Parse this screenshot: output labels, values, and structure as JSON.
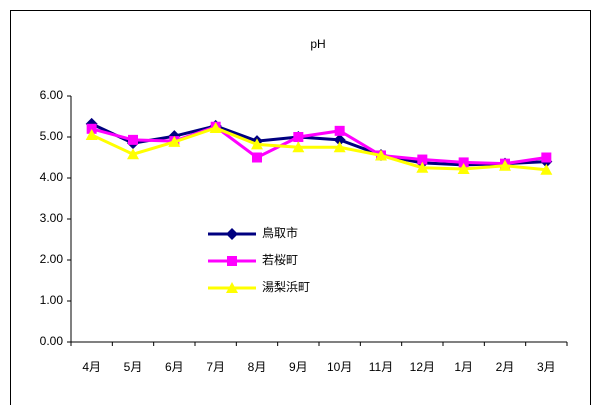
{
  "chart_data": {
    "type": "line",
    "title": "pH",
    "categories": [
      "4月",
      "5月",
      "6月",
      "7月",
      "8月",
      "9月",
      "10月",
      "11月",
      "12月",
      "1月",
      "2月",
      "3月"
    ],
    "series": [
      {
        "name": "鳥取市",
        "color": "#000080",
        "marker": "diamond",
        "values": [
          5.32,
          4.85,
          5.02,
          5.27,
          4.9,
          5.0,
          4.93,
          4.56,
          4.37,
          4.32,
          4.35,
          4.4
        ]
      },
      {
        "name": "若桜町",
        "color": "#ff00ff",
        "marker": "square",
        "values": [
          5.2,
          4.93,
          4.9,
          5.25,
          4.5,
          5.0,
          5.15,
          4.55,
          4.45,
          4.38,
          4.35,
          4.5
        ]
      },
      {
        "name": "湯梨浜町",
        "color": "#ffff00",
        "marker": "triangle",
        "values": [
          5.05,
          4.58,
          4.88,
          5.22,
          4.82,
          4.75,
          4.75,
          4.55,
          4.25,
          4.22,
          4.3,
          4.2
        ]
      }
    ],
    "ylim": [
      0,
      6
    ],
    "yticks": [
      {
        "value": 0,
        "label": "0.00"
      },
      {
        "value": 1,
        "label": "1.00"
      },
      {
        "value": 2,
        "label": "2.00"
      },
      {
        "value": 3,
        "label": "3.00"
      },
      {
        "value": 4,
        "label": "4.00"
      },
      {
        "value": 5,
        "label": "5.00"
      },
      {
        "value": 6,
        "label": "6.00"
      }
    ],
    "grid": false
  }
}
